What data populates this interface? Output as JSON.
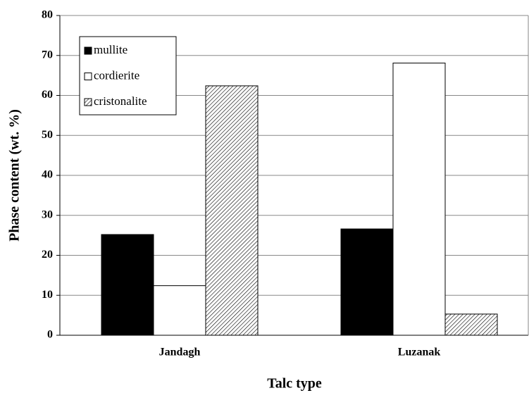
{
  "chart_data": {
    "type": "bar",
    "x_label": "Talc type",
    "y_label": "Phase content (wt. %)",
    "categories": [
      "Jandagh",
      "Luzanak"
    ],
    "series": [
      {
        "name": "mullite",
        "color": "#000000",
        "values": [
          25.2,
          26.6
        ]
      },
      {
        "name": "cordierite",
        "color": "#ffffff",
        "values": [
          12.4,
          68.1
        ]
      },
      {
        "name": "cristonalite",
        "color": "#000000",
        "pattern": "hatch",
        "values": [
          62.4,
          5.3
        ]
      }
    ],
    "ylim": [
      0,
      80
    ],
    "yticks": [
      0,
      10,
      20,
      30,
      40,
      50,
      60,
      70,
      80
    ],
    "grid": true,
    "legend": "upper left"
  }
}
